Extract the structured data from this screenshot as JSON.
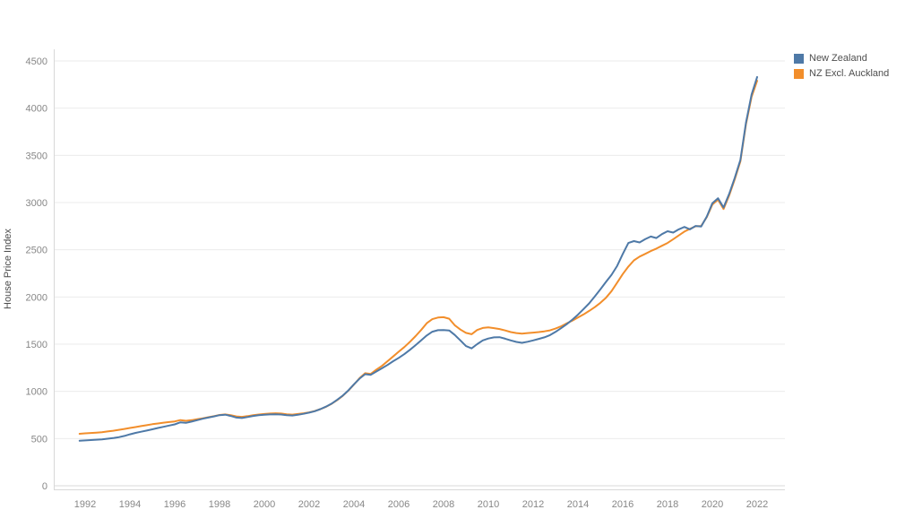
{
  "chart_data": {
    "type": "line",
    "title": "",
    "xlabel": "",
    "ylabel": "House Price Index",
    "xlim": [
      1992,
      2022
    ],
    "ylim": [
      0,
      4500
    ],
    "grid": "horizontal",
    "legend_position": "top-right",
    "x_ticks": [
      1992,
      1994,
      1996,
      1998,
      2000,
      2002,
      2004,
      2006,
      2008,
      2010,
      2012,
      2014,
      2016,
      2018,
      2020,
      2022
    ],
    "y_ticks": [
      0,
      500,
      1000,
      1500,
      2000,
      2500,
      3000,
      3500,
      4000,
      4500
    ],
    "x_start": 1991.75,
    "x_step": 0.25,
    "series": [
      {
        "name": "New Zealand",
        "color": "#4e79a7",
        "values": [
          477,
          480,
          484,
          488,
          492,
          498,
          505,
          515,
          528,
          545,
          560,
          572,
          585,
          598,
          612,
          625,
          638,
          650,
          672,
          666,
          680,
          695,
          710,
          722,
          735,
          748,
          753,
          740,
          722,
          718,
          728,
          740,
          748,
          752,
          756,
          758,
          755,
          748,
          744,
          752,
          762,
          775,
          790,
          812,
          838,
          870,
          910,
          955,
          1010,
          1075,
          1135,
          1182,
          1175,
          1210,
          1245,
          1280,
          1320,
          1355,
          1395,
          1440,
          1490,
          1540,
          1592,
          1632,
          1648,
          1650,
          1645,
          1598,
          1540,
          1480,
          1455,
          1500,
          1540,
          1560,
          1572,
          1574,
          1558,
          1540,
          1524,
          1514,
          1526,
          1540,
          1556,
          1572,
          1596,
          1630,
          1670,
          1712,
          1760,
          1812,
          1872,
          1932,
          2005,
          2080,
          2160,
          2235,
          2330,
          2455,
          2572,
          2592,
          2578,
          2612,
          2640,
          2624,
          2666,
          2696,
          2682,
          2716,
          2742,
          2716,
          2752,
          2746,
          2852,
          2992,
          3046,
          2948,
          3092,
          3262,
          3452,
          3845,
          4145,
          4330
        ]
      },
      {
        "name": "NZ Excl. Auckland",
        "color": "#f28e2b",
        "values": [
          551,
          555,
          559,
          563,
          568,
          575,
          583,
          592,
          602,
          612,
          622,
          632,
          642,
          652,
          660,
          668,
          675,
          682,
          696,
          688,
          695,
          705,
          715,
          726,
          738,
          750,
          756,
          748,
          735,
          730,
          738,
          748,
          755,
          760,
          765,
          768,
          765,
          758,
          754,
          760,
          768,
          778,
          792,
          812,
          836,
          868,
          908,
          952,
          1008,
          1072,
          1140,
          1192,
          1185,
          1230,
          1270,
          1320,
          1370,
          1420,
          1470,
          1525,
          1585,
          1650,
          1722,
          1765,
          1782,
          1786,
          1770,
          1700,
          1655,
          1620,
          1605,
          1650,
          1672,
          1678,
          1670,
          1660,
          1645,
          1628,
          1618,
          1612,
          1618,
          1622,
          1628,
          1636,
          1646,
          1665,
          1690,
          1720,
          1750,
          1782,
          1815,
          1852,
          1892,
          1938,
          1992,
          2062,
          2152,
          2242,
          2322,
          2388,
          2428,
          2456,
          2486,
          2512,
          2542,
          2572,
          2612,
          2652,
          2692,
          2722,
          2748,
          2752,
          2846,
          2978,
          3030,
          2932,
          3076,
          3246,
          3436,
          3828,
          4120,
          4290
        ]
      }
    ]
  },
  "colors": {
    "background": "#ffffff",
    "gridline": "#ebebeb",
    "axis_line": "#d8d8d8",
    "tick_label": "#878787",
    "axis_title": "#4a4a4a",
    "legend_text": "#4e4e4e"
  }
}
